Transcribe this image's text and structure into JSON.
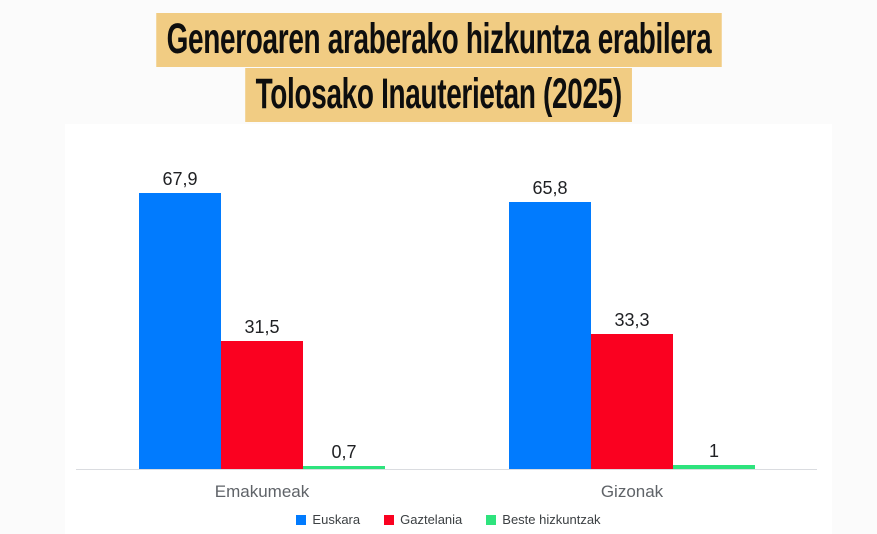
{
  "page": {
    "background_color": "#fbfbfb",
    "card_background_color": "#ffffff"
  },
  "title": {
    "line1": "Generoaren araberako hizkuntza erabilera",
    "line2": "Tolosako Inauterietan (2025)",
    "highlight_color": "#f1cc83",
    "text_color": "#0e0e0e"
  },
  "chart_data": {
    "type": "bar",
    "title": "Generoaren araberako hizkuntza erabilera Tolosako Inauterietan (2025)",
    "categories": [
      "Emakumeak",
      "Gizonak"
    ],
    "series": [
      {
        "name": "Euskara",
        "color": "#017bfe",
        "values": [
          67.9,
          65.8
        ],
        "value_labels": [
          "67,9",
          "65,8"
        ]
      },
      {
        "name": "Gaztelania",
        "color": "#fa0120",
        "values": [
          31.5,
          33.3
        ],
        "value_labels": [
          "31,5",
          "33,3"
        ]
      },
      {
        "name": "Beste hizkuntzak",
        "color": "#2ee37d",
        "values": [
          0.7,
          1
        ],
        "value_labels": [
          "0,7",
          "1"
        ]
      }
    ],
    "xlabel": "",
    "ylabel": "",
    "ylim": [
      0,
      85
    ],
    "grid": false,
    "legend_position": "bottom",
    "value_label_color": "#202124",
    "category_label_color": "#5f6368",
    "axis_line_color": "#dadce0"
  }
}
